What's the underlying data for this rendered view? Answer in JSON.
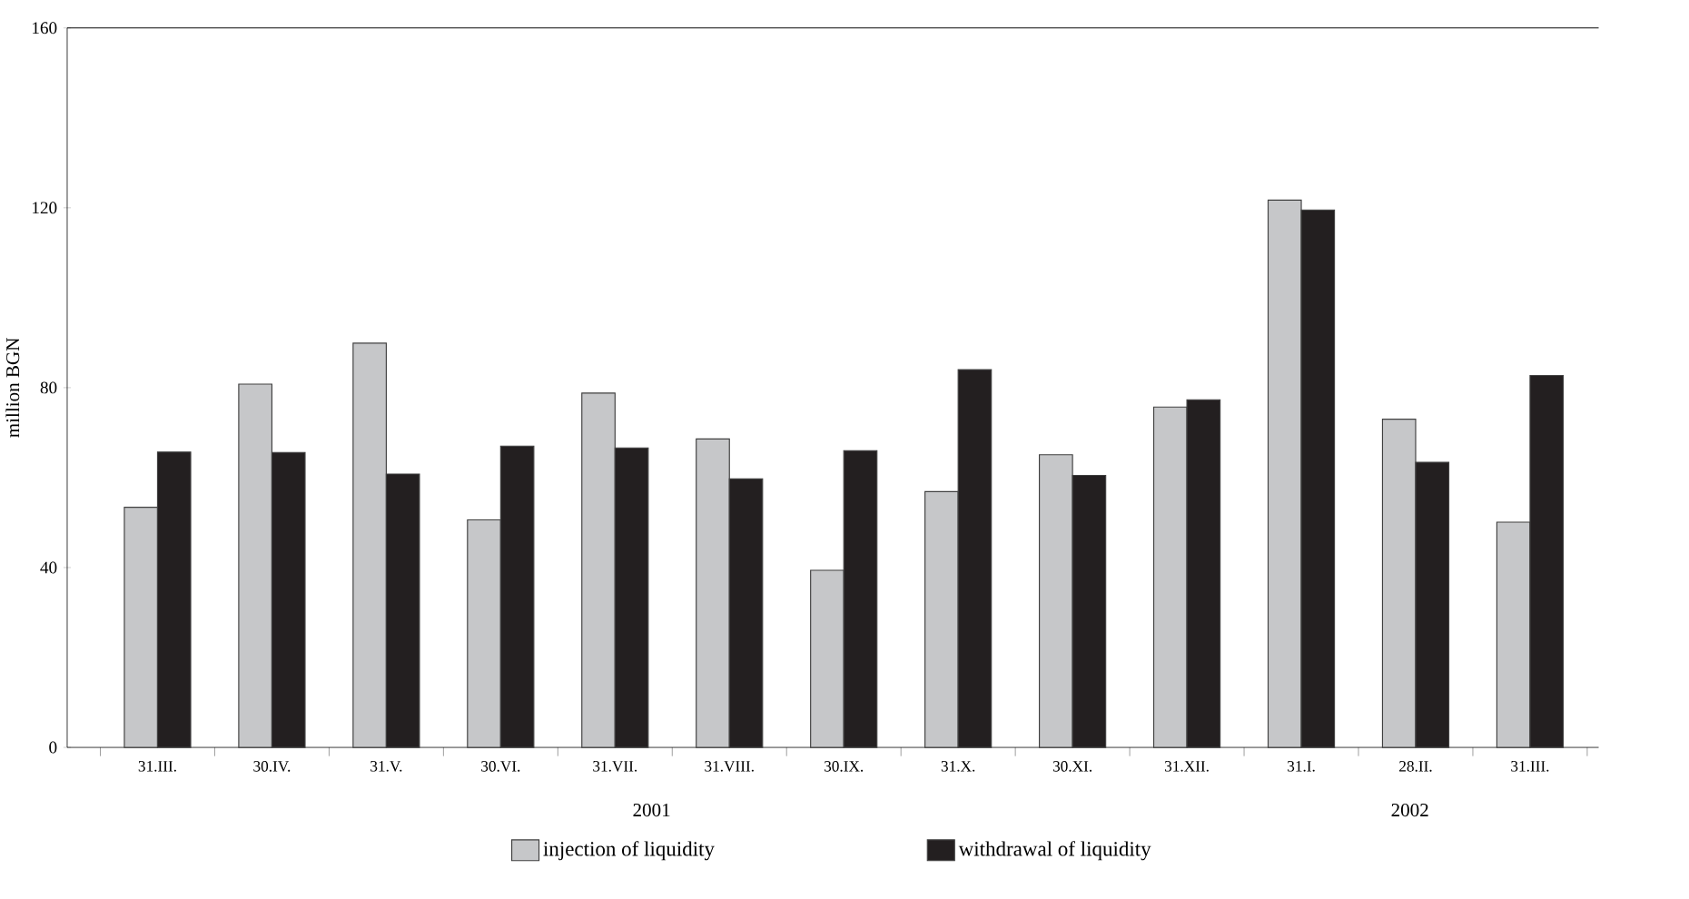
{
  "chart_data": {
    "type": "bar",
    "ylabel": "million BGN",
    "categories": [
      "31.III.",
      "30.IV.",
      "31.V.",
      "30.VI.",
      "31.VII.",
      "31.VIII.",
      "30.IX.",
      "31.X.",
      "30.XI.",
      "31.XII.",
      "31.I.",
      "28.II.",
      "31.III."
    ],
    "series": [
      {
        "name": "injection of liquidity",
        "color": "#c6c7c9",
        "values": [
          53.4,
          80.8,
          89.9,
          50.6,
          78.8,
          68.6,
          39.4,
          56.9,
          65.1,
          75.7,
          121.7,
          73.0,
          50.1
        ]
      },
      {
        "name": "withdrawal of liquidity",
        "color": "#231f20",
        "values": [
          65.7,
          65.6,
          60.8,
          67.0,
          66.6,
          59.7,
          66.0,
          84.0,
          60.5,
          77.3,
          119.5,
          63.4,
          82.7
        ]
      }
    ],
    "ylim": [
      0,
      160
    ],
    "yticks": [
      0,
      40,
      80,
      120,
      160
    ],
    "annotations": [
      "2001",
      "2002"
    ],
    "legend": "bottom",
    "grid": false
  }
}
